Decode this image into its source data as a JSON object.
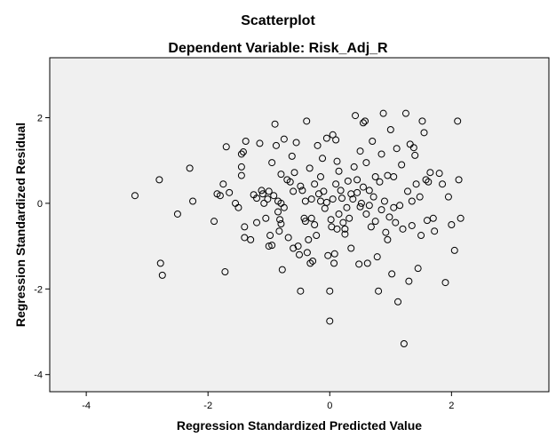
{
  "chart_data": {
    "type": "scatter",
    "title": "Scatterplot",
    "subtitle": "Dependent Variable: Risk_Adj_R",
    "xlabel": "Regression Standardized Predicted Value",
    "ylabel": "Regression Standardized Residual",
    "xlim": [
      -4.6,
      3.6
    ],
    "ylim": [
      -4.4,
      3.4
    ],
    "x_ticks": [
      -4,
      -2,
      0,
      2
    ],
    "y_ticks": [
      -4,
      -2,
      0,
      2
    ],
    "grid": false,
    "points": [
      [
        -3.2,
        0.18
      ],
      [
        -2.8,
        0.55
      ],
      [
        -2.78,
        -1.4
      ],
      [
        -2.75,
        -1.68
      ],
      [
        -2.5,
        -0.25
      ],
      [
        -2.3,
        0.82
      ],
      [
        -2.25,
        0.05
      ],
      [
        -1.9,
        -0.42
      ],
      [
        -1.85,
        0.22
      ],
      [
        -1.8,
        0.18
      ],
      [
        -1.75,
        0.45
      ],
      [
        -1.72,
        -1.6
      ],
      [
        -1.7,
        1.32
      ],
      [
        -1.65,
        0.25
      ],
      [
        -1.55,
        0.0
      ],
      [
        -1.5,
        -0.1
      ],
      [
        -1.45,
        1.15
      ],
      [
        -1.45,
        0.65
      ],
      [
        -1.45,
        0.85
      ],
      [
        -1.42,
        1.2
      ],
      [
        -1.4,
        -0.55
      ],
      [
        -1.4,
        -0.8
      ],
      [
        -1.38,
        1.45
      ],
      [
        -1.3,
        -0.85
      ],
      [
        -1.25,
        0.2
      ],
      [
        -1.2,
        0.12
      ],
      [
        -1.2,
        -0.45
      ],
      [
        -1.15,
        1.4
      ],
      [
        -1.12,
        0.3
      ],
      [
        -1.1,
        0.22
      ],
      [
        -1.08,
        0.0
      ],
      [
        -1.05,
        -0.35
      ],
      [
        -1.02,
        0.1
      ],
      [
        -1.0,
        0.28
      ],
      [
        -0.98,
        -0.75
      ],
      [
        -0.95,
        -0.98
      ],
      [
        -0.95,
        0.95
      ],
      [
        -0.92,
        0.18
      ],
      [
        -0.9,
        1.85
      ],
      [
        -0.88,
        1.35
      ],
      [
        -0.85,
        -0.2
      ],
      [
        -0.85,
        0.05
      ],
      [
        -0.83,
        -0.65
      ],
      [
        -0.82,
        -0.38
      ],
      [
        -0.8,
        0.68
      ],
      [
        -0.8,
        0.0
      ],
      [
        -0.8,
        -0.48
      ],
      [
        -0.78,
        -1.55
      ],
      [
        -0.75,
        1.5
      ],
      [
        -0.75,
        -0.1
      ],
      [
        -0.7,
        0.55
      ],
      [
        -0.68,
        -0.8
      ],
      [
        -0.65,
        0.5
      ],
      [
        -0.62,
        1.1
      ],
      [
        -0.6,
        0.28
      ],
      [
        -0.58,
        0.72
      ],
      [
        -0.55,
        1.42
      ],
      [
        -0.52,
        -1.0
      ],
      [
        -0.5,
        -1.2
      ],
      [
        -0.48,
        -2.05
      ],
      [
        -0.48,
        0.4
      ],
      [
        -0.45,
        0.3
      ],
      [
        -0.42,
        -0.35
      ],
      [
        -0.4,
        -0.42
      ],
      [
        -0.38,
        1.92
      ],
      [
        -0.37,
        -1.15
      ],
      [
        -0.35,
        -0.85
      ],
      [
        -0.33,
        0.82
      ],
      [
        -0.32,
        -1.4
      ],
      [
        -0.3,
        0.1
      ],
      [
        -0.3,
        -0.35
      ],
      [
        -0.28,
        -1.35
      ],
      [
        -0.25,
        -0.5
      ],
      [
        -0.22,
        -0.75
      ],
      [
        -0.2,
        1.35
      ],
      [
        -0.18,
        0.22
      ],
      [
        -0.15,
        0.05
      ],
      [
        -0.12,
        1.05
      ],
      [
        -0.1,
        0.28
      ],
      [
        -0.08,
        -0.12
      ],
      [
        -0.05,
        1.52
      ],
      [
        -0.05,
        0.02
      ],
      [
        -0.03,
        -1.22
      ],
      [
        0.0,
        -2.75
      ],
      [
        0.0,
        -2.05
      ],
      [
        0.02,
        -0.38
      ],
      [
        0.03,
        -0.55
      ],
      [
        0.05,
        1.6
      ],
      [
        0.05,
        0.1
      ],
      [
        0.07,
        -1.4
      ],
      [
        0.08,
        -1.18
      ],
      [
        0.1,
        1.48
      ],
      [
        0.1,
        0.45
      ],
      [
        0.12,
        0.98
      ],
      [
        0.12,
        -0.6
      ],
      [
        0.15,
        -0.25
      ],
      [
        0.18,
        0.3
      ],
      [
        0.2,
        0.12
      ],
      [
        0.22,
        -0.45
      ],
      [
        0.25,
        -0.6
      ],
      [
        0.28,
        -0.1
      ],
      [
        0.3,
        0.52
      ],
      [
        0.32,
        -0.35
      ],
      [
        0.35,
        0.22
      ],
      [
        0.38,
        0.1
      ],
      [
        0.4,
        0.85
      ],
      [
        0.42,
        2.05
      ],
      [
        0.45,
        0.55
      ],
      [
        0.45,
        0.25
      ],
      [
        0.48,
        -1.42
      ],
      [
        0.5,
        -0.08
      ],
      [
        0.5,
        1.22
      ],
      [
        0.52,
        0.0
      ],
      [
        0.55,
        1.88
      ],
      [
        0.58,
        1.92
      ],
      [
        0.6,
        -0.25
      ],
      [
        0.6,
        0.95
      ],
      [
        0.62,
        -1.4
      ],
      [
        0.65,
        0.3
      ],
      [
        0.68,
        -0.55
      ],
      [
        0.7,
        1.45
      ],
      [
        0.72,
        0.15
      ],
      [
        0.75,
        0.62
      ],
      [
        0.75,
        -0.42
      ],
      [
        0.78,
        -1.25
      ],
      [
        0.8,
        -2.05
      ],
      [
        0.82,
        0.5
      ],
      [
        0.85,
        1.15
      ],
      [
        0.88,
        2.1
      ],
      [
        0.9,
        0.05
      ],
      [
        0.92,
        -0.68
      ],
      [
        0.95,
        -0.85
      ],
      [
        0.95,
        0.65
      ],
      [
        0.98,
        -0.32
      ],
      [
        1.0,
        1.72
      ],
      [
        1.02,
        -1.65
      ],
      [
        1.05,
        -0.1
      ],
      [
        1.05,
        0.62
      ],
      [
        1.08,
        -0.45
      ],
      [
        1.1,
        1.28
      ],
      [
        1.12,
        -2.3
      ],
      [
        1.15,
        -0.05
      ],
      [
        1.18,
        0.9
      ],
      [
        1.2,
        -0.6
      ],
      [
        1.22,
        -3.28
      ],
      [
        1.25,
        2.1
      ],
      [
        1.28,
        0.28
      ],
      [
        1.3,
        -1.82
      ],
      [
        1.32,
        1.38
      ],
      [
        1.35,
        -0.52
      ],
      [
        1.38,
        1.3
      ],
      [
        1.4,
        1.12
      ],
      [
        1.42,
        0.45
      ],
      [
        1.45,
        -1.52
      ],
      [
        1.48,
        0.15
      ],
      [
        1.5,
        -0.75
      ],
      [
        1.52,
        1.92
      ],
      [
        1.55,
        1.65
      ],
      [
        1.58,
        0.55
      ],
      [
        1.6,
        -0.4
      ],
      [
        1.62,
        0.5
      ],
      [
        1.65,
        0.72
      ],
      [
        1.7,
        -0.35
      ],
      [
        1.72,
        -0.65
      ],
      [
        1.8,
        0.7
      ],
      [
        1.85,
        0.45
      ],
      [
        1.9,
        -1.85
      ],
      [
        1.95,
        0.15
      ],
      [
        2.0,
        -0.5
      ],
      [
        2.05,
        -1.1
      ],
      [
        2.1,
        1.92
      ],
      [
        2.12,
        0.55
      ],
      [
        2.15,
        -0.35
      ],
      [
        -0.6,
        -1.05
      ],
      [
        0.25,
        -0.72
      ],
      [
        -0.15,
        0.62
      ],
      [
        0.35,
        -1.05
      ],
      [
        0.65,
        -0.05
      ],
      [
        -1.0,
        -1.0
      ],
      [
        0.15,
        0.75
      ],
      [
        -0.4,
        0.05
      ],
      [
        0.85,
        -0.15
      ],
      [
        -0.25,
        0.45
      ],
      [
        0.55,
        0.38
      ],
      [
        1.35,
        0.05
      ]
    ]
  }
}
